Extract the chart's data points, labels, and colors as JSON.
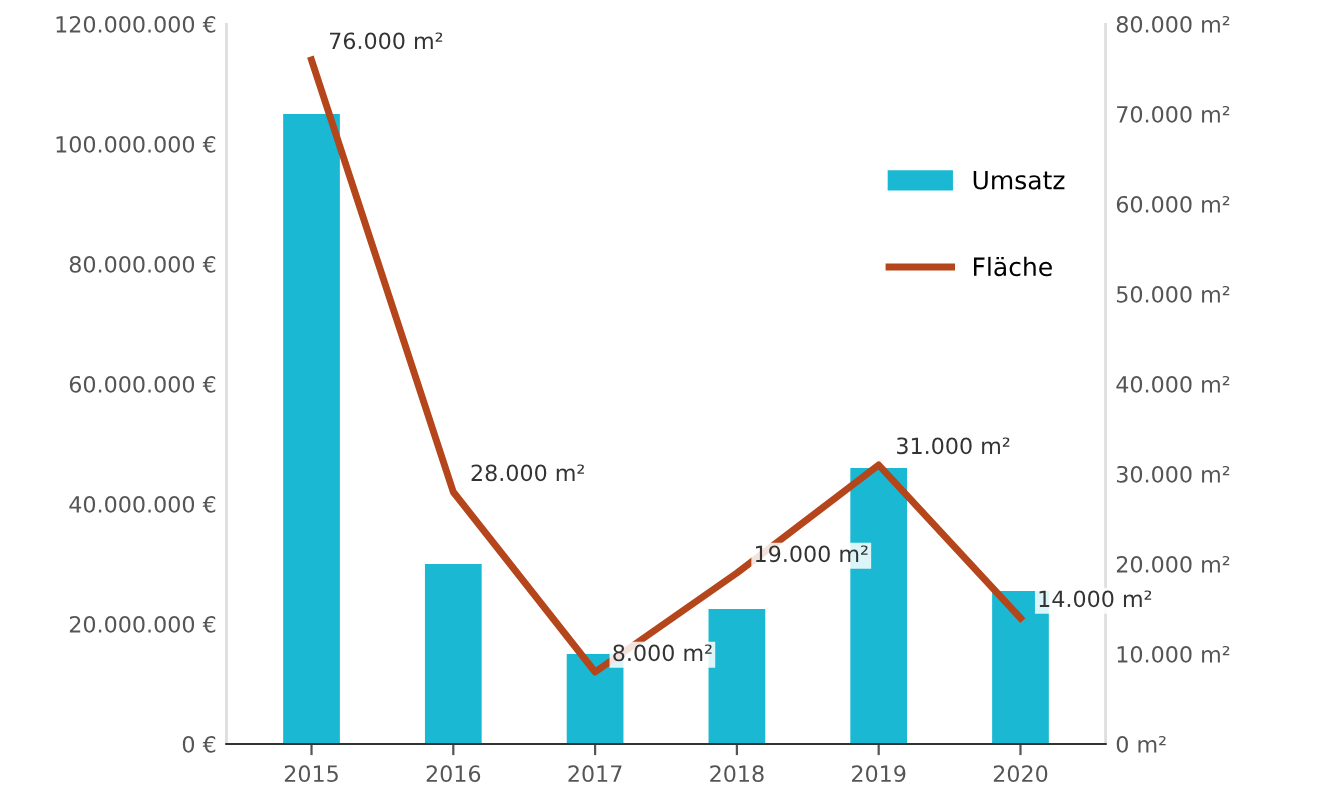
{
  "chart_data": {
    "type": "bar",
    "categories": [
      "2015",
      "2016",
      "2017",
      "2018",
      "2019",
      "2020"
    ],
    "series": [
      {
        "name": "Umsatz",
        "color": "#1ab8d2",
        "values": [
          105000000,
          30000000,
          15000000,
          22500000,
          46000000,
          25500000
        ]
      },
      {
        "name": "Fläche",
        "type": "line",
        "axis": "y2",
        "color": "#b5451b",
        "values": [
          76000,
          28000,
          8000,
          19000,
          31000,
          14000
        ],
        "value_labels": [
          "76.000 m²",
          "28.000 m²",
          "8.000 m²",
          "19.000 m²",
          "31.000 m²",
          "14.000 m²"
        ]
      }
    ],
    "ylim": [
      0,
      120000000
    ],
    "yticks": [
      {
        "value": 0,
        "label": "0 €"
      },
      {
        "value": 20000000,
        "label": "20.000.000 €"
      },
      {
        "value": 40000000,
        "label": "40.000.000 €"
      },
      {
        "value": 60000000,
        "label": "60.000.000 €"
      },
      {
        "value": 80000000,
        "label": "80.000.000 €"
      },
      {
        "value": 100000000,
        "label": "100.000.000 €"
      },
      {
        "value": 120000000,
        "label": "120.000.000 €"
      }
    ],
    "y2lim": [
      0,
      80000
    ],
    "y2ticks": [
      {
        "value": 0,
        "label": "0 m²"
      },
      {
        "value": 10000,
        "label": "10.000 m²"
      },
      {
        "value": 20000,
        "label": "20.000 m²"
      },
      {
        "value": 30000,
        "label": "30.000 m²"
      },
      {
        "value": 40000,
        "label": "40.000 m²"
      },
      {
        "value": 50000,
        "label": "50.000 m²"
      },
      {
        "value": 60000,
        "label": "60.000 m²"
      },
      {
        "value": 70000,
        "label": "70.000 m²"
      },
      {
        "value": 80000,
        "label": "80.000 m²"
      }
    ],
    "grid": false,
    "legend": "right",
    "marker": "none",
    "line_style": "solid"
  }
}
